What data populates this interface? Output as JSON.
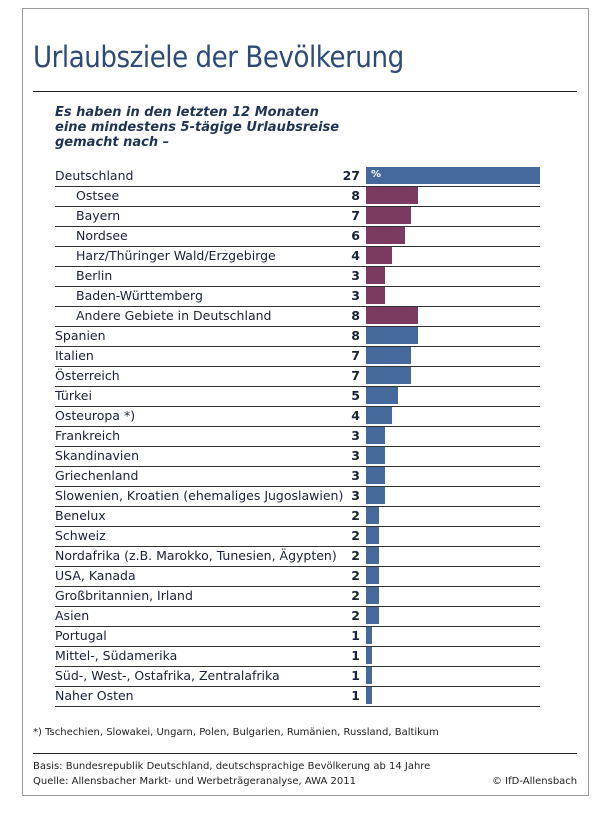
{
  "chart_data": {
    "type": "bar",
    "orientation": "horizontal",
    "title": "Urlaubsziele der Bevölkerung",
    "subtitle": "Es haben in den letzten 12 Monaten\neine mindestens 5-tägige Urlaubsreise\ngemacht nach –",
    "unit": "%",
    "colors": {
      "country": "#44699a",
      "region": "#7b3a60"
    },
    "categories": [
      "Deutschland",
      "Ostsee",
      "Bayern",
      "Nordsee",
      "Harz/Thüringer Wald/Erzgebirge",
      "Berlin",
      "Baden-Württemberg",
      "Andere Gebiete in Deutschland",
      "Spanien",
      "Italien",
      "Österreich",
      "Türkei",
      "Osteuropa *)",
      "Frankreich",
      "Skandinavien",
      "Griechenland",
      "Slowenien, Kroatien (ehemaliges Jugoslawien)",
      "Benelux",
      "Schweiz",
      "Nordafrika (z.B. Marokko, Tunesien, Ägypten)",
      "USA, Kanada",
      "Großbritannien, Irland",
      "Asien",
      "Portugal",
      "Mittel-, Südamerika",
      "Süd-, West-, Ostafrika, Zentralafrika",
      "Naher Osten"
    ],
    "values": [
      27,
      8,
      7,
      6,
      4,
      3,
      3,
      8,
      8,
      7,
      7,
      5,
      4,
      3,
      3,
      3,
      3,
      2,
      2,
      2,
      2,
      2,
      2,
      1,
      1,
      1,
      1
    ],
    "sub_region": [
      false,
      true,
      true,
      true,
      true,
      true,
      true,
      true,
      false,
      false,
      false,
      false,
      false,
      false,
      false,
      false,
      false,
      false,
      false,
      false,
      false,
      false,
      false,
      false,
      false,
      false,
      false
    ],
    "footnote": "*) Tschechien, Slowakei, Ungarn, Polen, Bulgarien, Rumänien, Russland, Baltikum",
    "basis": "Basis: Bundesrepublik Deutschland, deutschsprachige Bevölkerung ab 14 Jahre",
    "source": "Quelle: Allensbacher Markt- und Werbeträgeranalyse, AWA 2011",
    "copyright": "© IfD-Allensbach"
  }
}
